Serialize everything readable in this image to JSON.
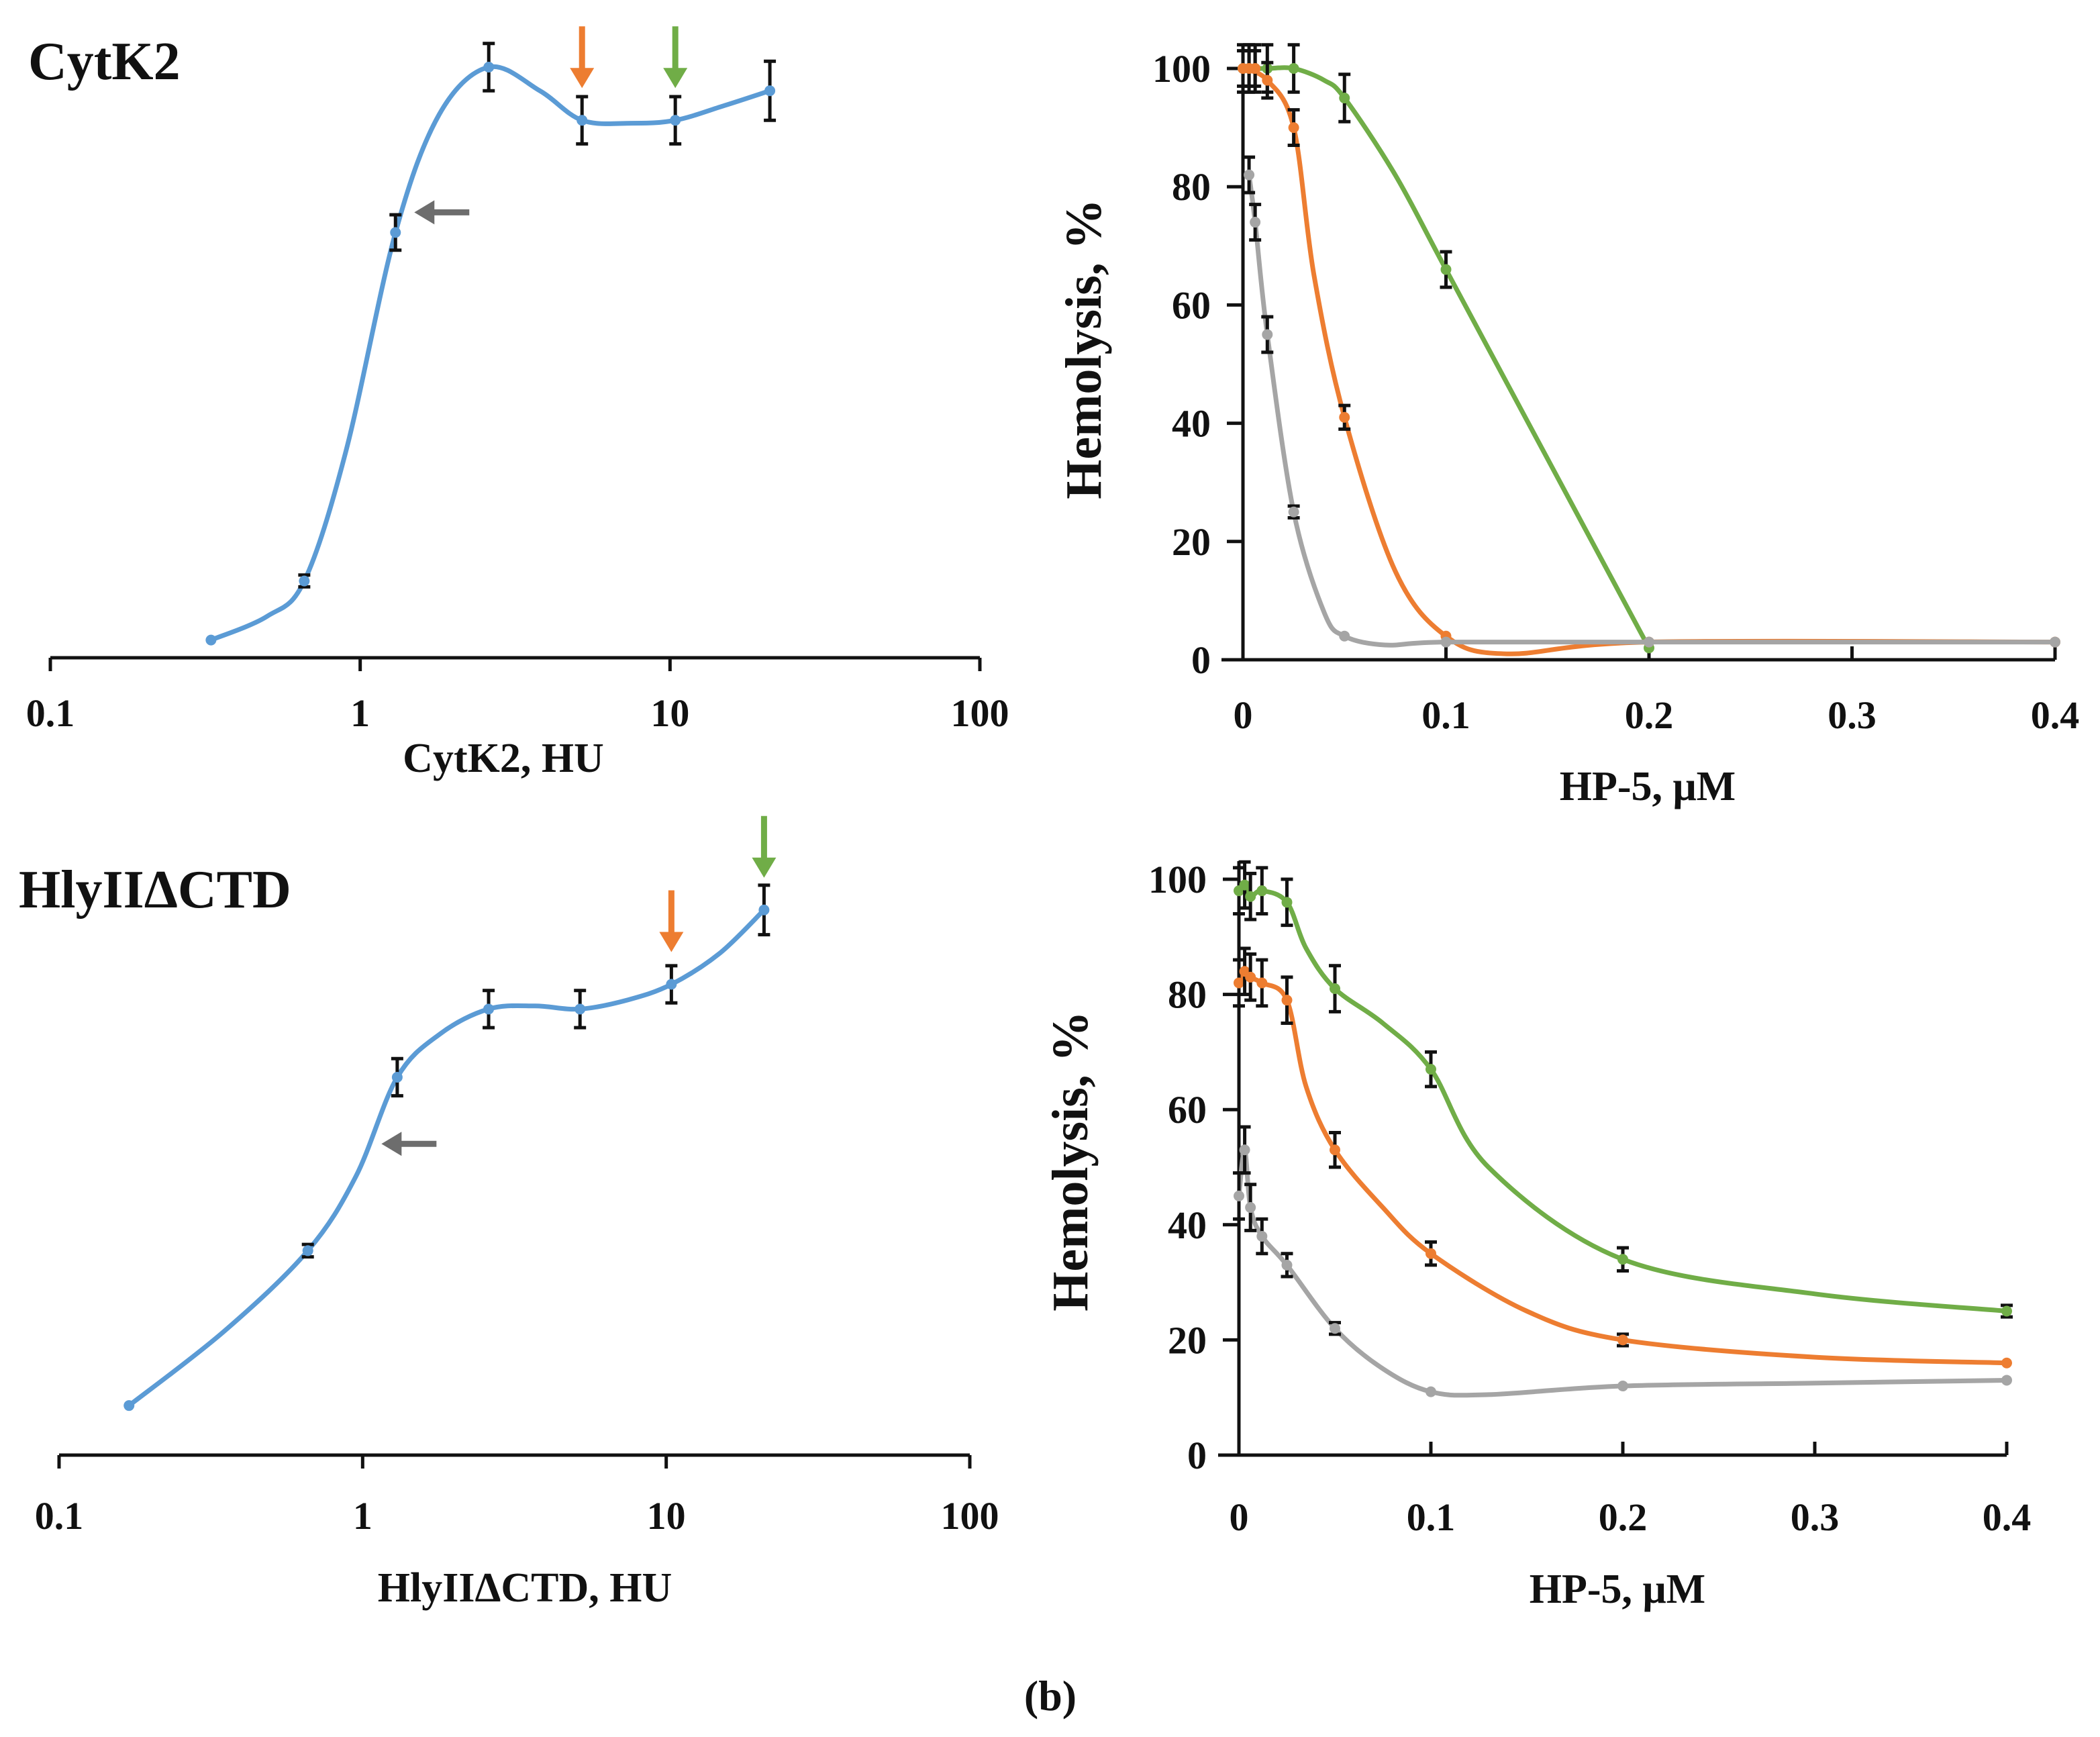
{
  "figure_label": "(b)",
  "colors": {
    "cytk_curve": "#5b9bd5",
    "green": "#70ad47",
    "orange": "#ed7d31",
    "gray": "#a5a5a5",
    "arrow_gray": "#6d6d6d",
    "axis": "#111111"
  },
  "chart_data": [
    {
      "id": "A",
      "type": "line",
      "title": "CytK2",
      "xlabel": "CytK2, HU",
      "ylabel": "",
      "xscale": "log",
      "xlim": [
        0.1,
        100
      ],
      "ylim": [
        0,
        100
      ],
      "x_ticks": [
        "0.1",
        "1",
        "10",
        "100"
      ],
      "series": [
        {
          "name": "CytK2",
          "color": "#5b9bd5",
          "x": [
            0.33,
            0.66,
            1.3,
            2.6,
            5.2,
            10.4,
            21
          ],
          "y": [
            3,
            13,
            72,
            100,
            91,
            91,
            96
          ],
          "err": [
            0,
            1,
            3,
            4,
            4,
            4,
            5
          ],
          "smooth": [
            [
              0.33,
              3
            ],
            [
              0.5,
              7
            ],
            [
              0.66,
              13
            ],
            [
              0.9,
              35
            ],
            [
              1.3,
              72
            ],
            [
              1.8,
              92
            ],
            [
              2.6,
              100
            ],
            [
              3.8,
              96
            ],
            [
              5.2,
              91
            ],
            [
              7.5,
              90.5
            ],
            [
              10.4,
              91
            ],
            [
              15,
              93.5
            ],
            [
              21,
              96
            ]
          ]
        }
      ],
      "annotations": [
        {
          "type": "arrow-down",
          "color": "#ed7d31",
          "x": 5.2,
          "y": 91
        },
        {
          "type": "arrow-down",
          "color": "#70ad47",
          "x": 10.4,
          "y": 91
        },
        {
          "type": "arrow-left",
          "color": "#6d6d6d",
          "x": 1.3,
          "y": 72
        }
      ]
    },
    {
      "id": "B",
      "type": "line",
      "title": "",
      "xlabel": "HP-5, μM",
      "ylabel": "Hemolysis, %",
      "xlim": [
        0,
        0.4
      ],
      "ylim": [
        0,
        100
      ],
      "x_ticks": [
        "0",
        "0.1",
        "0.2",
        "0.3",
        "0.4"
      ],
      "y_ticks": [
        "0",
        "20",
        "40",
        "60",
        "80",
        "100"
      ],
      "series": [
        {
          "name": "green",
          "color": "#70ad47",
          "x": [
            0,
            0.003,
            0.006,
            0.012,
            0.025,
            0.05,
            0.1,
            0.2
          ],
          "y": [
            100,
            100,
            100,
            100,
            100,
            95,
            66,
            2
          ],
          "err": [
            4,
            4,
            4,
            4,
            4,
            4,
            3,
            0
          ],
          "smooth": [
            [
              0,
              100
            ],
            [
              0.012,
              100
            ],
            [
              0.025,
              100
            ],
            [
              0.04,
              98
            ],
            [
              0.05,
              95
            ],
            [
              0.075,
              82
            ],
            [
              0.1,
              66
            ],
            [
              0.15,
              34
            ],
            [
              0.2,
              2
            ]
          ]
        },
        {
          "name": "orange",
          "color": "#ed7d31",
          "x": [
            0,
            0.003,
            0.006,
            0.012,
            0.025,
            0.05,
            0.1,
            0.2,
            0.4
          ],
          "y": [
            100,
            100,
            100,
            98,
            90,
            41,
            4,
            3,
            3
          ],
          "err": [
            3,
            3,
            3,
            3,
            3,
            2,
            0,
            0,
            0
          ],
          "smooth": [
            [
              0,
              100
            ],
            [
              0.012,
              98
            ],
            [
              0.025,
              90
            ],
            [
              0.035,
              65
            ],
            [
              0.05,
              41
            ],
            [
              0.075,
              15
            ],
            [
              0.1,
              4
            ],
            [
              0.13,
              1
            ],
            [
              0.2,
              3
            ],
            [
              0.4,
              3
            ]
          ]
        },
        {
          "name": "gray",
          "color": "#a5a5a5",
          "x": [
            0.003,
            0.006,
            0.012,
            0.025,
            0.05,
            0.1,
            0.2,
            0.4
          ],
          "y": [
            82,
            74,
            55,
            25,
            4,
            3,
            3,
            3
          ],
          "err": [
            3,
            3,
            3,
            1,
            0,
            0,
            0,
            0
          ],
          "smooth": [
            [
              0.003,
              82
            ],
            [
              0.006,
              74
            ],
            [
              0.012,
              55
            ],
            [
              0.025,
              25
            ],
            [
              0.04,
              8
            ],
            [
              0.05,
              4
            ],
            [
              0.07,
              2.5
            ],
            [
              0.1,
              3
            ],
            [
              0.2,
              3
            ],
            [
              0.4,
              3
            ]
          ]
        }
      ]
    },
    {
      "id": "C",
      "type": "line",
      "title": "HlyIIΔCTD",
      "xlabel": "HlyIIΔCTD, HU",
      "ylabel": "",
      "xscale": "log",
      "xlim": [
        0.1,
        100
      ],
      "ylim": [
        0,
        100
      ],
      "x_ticks": [
        "0.1",
        "1",
        "10",
        "100"
      ],
      "series": [
        {
          "name": "HlyIIΔCTD",
          "color": "#5b9bd5",
          "x": [
            0.17,
            0.66,
            1.3,
            2.6,
            5.2,
            10.4,
            21
          ],
          "y": [
            8,
            33,
            61,
            72,
            72,
            76,
            88
          ],
          "err": [
            0,
            1,
            3,
            3,
            3,
            3,
            4
          ],
          "smooth": [
            [
              0.17,
              8
            ],
            [
              0.35,
              20
            ],
            [
              0.66,
              33
            ],
            [
              0.95,
              45
            ],
            [
              1.3,
              61
            ],
            [
              1.8,
              68
            ],
            [
              2.6,
              72
            ],
            [
              3.7,
              72.5
            ],
            [
              5.2,
              72
            ],
            [
              7.5,
              73.5
            ],
            [
              10.4,
              76
            ],
            [
              15,
              81
            ],
            [
              21,
              88
            ]
          ]
        }
      ],
      "annotations": [
        {
          "type": "arrow-down",
          "color": "#ed7d31",
          "x": 10.4,
          "y": 76
        },
        {
          "type": "arrow-down",
          "color": "#70ad47",
          "x": 21,
          "y": 88
        },
        {
          "type": "arrow-left",
          "color": "#6d6d6d",
          "x": 1.0,
          "y": 47
        }
      ]
    },
    {
      "id": "D",
      "type": "line",
      "title": "",
      "xlabel": "HP-5, μM",
      "ylabel": "Hemolysis, %",
      "xlim": [
        0,
        0.4
      ],
      "ylim": [
        0,
        100
      ],
      "x_ticks": [
        "0",
        "0.1",
        "0.2",
        "0.3",
        "0.4"
      ],
      "y_ticks": [
        "0",
        "20",
        "40",
        "60",
        "80",
        "100"
      ],
      "series": [
        {
          "name": "green",
          "color": "#70ad47",
          "x": [
            0,
            0.003,
            0.006,
            0.012,
            0.025,
            0.05,
            0.1,
            0.2,
            0.4
          ],
          "y": [
            98,
            99,
            97,
            98,
            96,
            81,
            67,
            34,
            25
          ],
          "err": [
            4,
            4,
            4,
            4,
            4,
            4,
            3,
            2,
            1
          ],
          "smooth": [
            [
              0,
              98
            ],
            [
              0.003,
              99
            ],
            [
              0.006,
              97
            ],
            [
              0.012,
              98
            ],
            [
              0.025,
              96
            ],
            [
              0.035,
              88
            ],
            [
              0.05,
              81
            ],
            [
              0.075,
              75
            ],
            [
              0.1,
              67
            ],
            [
              0.13,
              50
            ],
            [
              0.2,
              34
            ],
            [
              0.3,
              28
            ],
            [
              0.4,
              25
            ]
          ]
        },
        {
          "name": "orange",
          "color": "#ed7d31",
          "x": [
            0,
            0.003,
            0.006,
            0.012,
            0.025,
            0.05,
            0.1,
            0.2,
            0.4
          ],
          "y": [
            82,
            84,
            83,
            82,
            79,
            53,
            35,
            20,
            16
          ],
          "err": [
            4,
            4,
            4,
            4,
            4,
            3,
            2,
            1,
            0
          ],
          "smooth": [
            [
              0,
              82
            ],
            [
              0.003,
              84
            ],
            [
              0.006,
              83
            ],
            [
              0.012,
              82
            ],
            [
              0.025,
              79
            ],
            [
              0.035,
              64
            ],
            [
              0.05,
              53
            ],
            [
              0.075,
              43
            ],
            [
              0.1,
              35
            ],
            [
              0.15,
              25
            ],
            [
              0.2,
              20
            ],
            [
              0.3,
              17
            ],
            [
              0.4,
              16
            ]
          ]
        },
        {
          "name": "gray",
          "color": "#a5a5a5",
          "x": [
            0,
            0.003,
            0.006,
            0.012,
            0.025,
            0.05,
            0.1,
            0.2,
            0.4
          ],
          "y": [
            45,
            53,
            43,
            38,
            33,
            22,
            11,
            12,
            13
          ],
          "err": [
            4,
            4,
            4,
            3,
            2,
            1,
            0,
            0,
            0
          ],
          "smooth": [
            [
              0,
              45
            ],
            [
              0.003,
              53
            ],
            [
              0.006,
              43
            ],
            [
              0.012,
              38
            ],
            [
              0.025,
              33
            ],
            [
              0.05,
              22
            ],
            [
              0.075,
              15
            ],
            [
              0.1,
              11
            ],
            [
              0.13,
              10.5
            ],
            [
              0.2,
              12
            ],
            [
              0.3,
              12.5
            ],
            [
              0.4,
              13
            ]
          ]
        }
      ]
    }
  ]
}
